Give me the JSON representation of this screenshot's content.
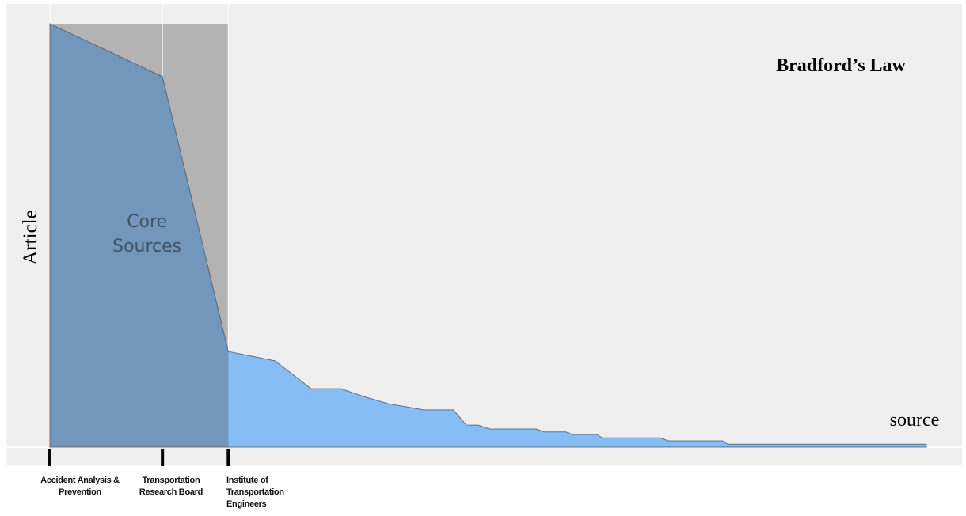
{
  "chart_data": {
    "type": "area",
    "title": "Bradford’s Law",
    "y_label": "Article",
    "x_label": "source",
    "annotation": "Core Sources",
    "log_x": true,
    "xlim": [
      1,
      221
    ],
    "ylim": [
      0,
      100
    ],
    "xticks": [
      {
        "value": 1,
        "label": "Accident Analysis & Prevention"
      },
      {
        "value": 2,
        "label": "Transportation Research Board"
      },
      {
        "value": 3,
        "label": "Institute of Transportation Engineers"
      }
    ],
    "x": [
      1,
      2,
      3,
      4,
      5,
      6,
      7,
      8,
      10,
      12,
      13,
      14,
      15,
      20,
      21,
      24,
      25,
      29,
      30,
      43,
      45,
      63,
      65,
      221
    ],
    "values": [
      100,
      87.5,
      22.6,
      20.4,
      13.8,
      13.8,
      11.8,
      10.3,
      8.8,
      8.8,
      5.2,
      5.2,
      4.3,
      4.3,
      3.6,
      3.6,
      3.0,
      3.0,
      2.2,
      2.2,
      1.5,
      1.5,
      0.7,
      0.7
    ],
    "color": "#86bdf5",
    "core_color": "#7297bb",
    "core_band_color": "#b3b3b3",
    "grid": true
  }
}
